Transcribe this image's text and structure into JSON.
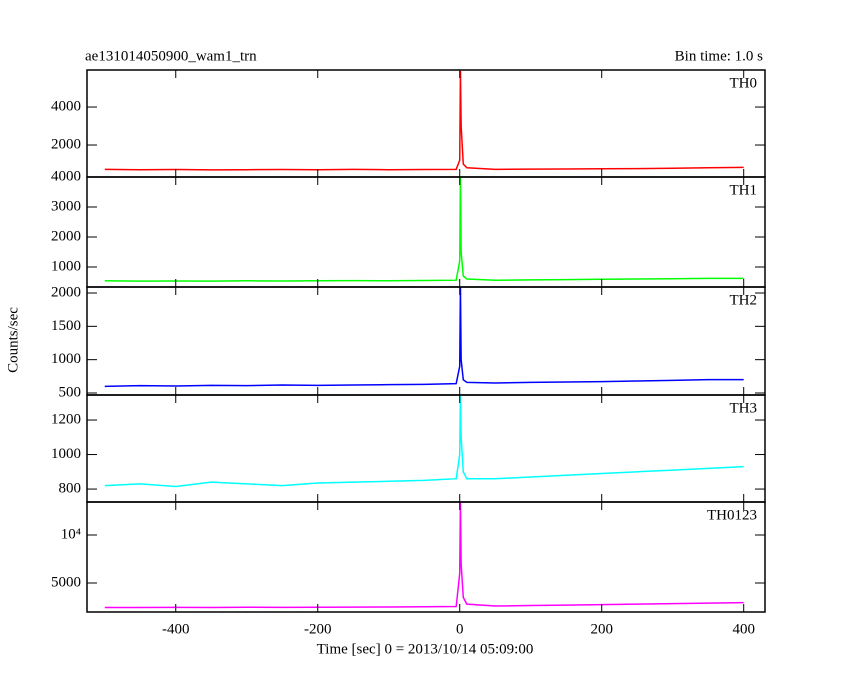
{
  "figure": {
    "title": "ae131014050900_wam1_trn",
    "subtitle": "Bin time: 1.0 s",
    "ylabel": "Counts/sec",
    "xlabel": "Time [sec] 0 = 2013/10/14 05:09:00",
    "xlim": [
      -525,
      430
    ],
    "xticks": [
      -400,
      -200,
      0,
      200,
      400
    ]
  },
  "chart_data": [
    {
      "type": "line",
      "name": "TH0",
      "ylim": [
        316,
        5950
      ],
      "yticks": [
        2000,
        4000
      ],
      "x": [
        -500,
        -450,
        -400,
        -350,
        -300,
        -250,
        -200,
        -150,
        -100,
        -50,
        -5,
        0,
        1,
        2,
        5,
        10,
        50,
        100,
        150,
        200,
        250,
        300,
        350,
        400
      ],
      "series": [
        {
          "name": "TH0",
          "color": "#ff0000",
          "values": [
            720,
            700,
            710,
            690,
            700,
            710,
            700,
            720,
            700,
            710,
            720,
            1200,
            5900,
            3000,
            1000,
            800,
            720,
            730,
            740,
            750,
            760,
            780,
            800,
            820
          ]
        }
      ]
    },
    {
      "type": "line",
      "name": "TH1",
      "ylim": [
        333,
        4000
      ],
      "yticks": [
        1000,
        2000,
        3000,
        4000
      ],
      "x": [
        -500,
        -450,
        -400,
        -350,
        -300,
        -250,
        -200,
        -150,
        -100,
        -50,
        -5,
        0,
        1,
        2,
        5,
        10,
        50,
        100,
        150,
        200,
        250,
        300,
        350,
        400
      ],
      "series": [
        {
          "name": "TH1",
          "color": "#00ff00",
          "values": [
            540,
            530,
            535,
            530,
            540,
            535,
            540,
            545,
            540,
            550,
            560,
            1200,
            4000,
            1500,
            700,
            600,
            560,
            570,
            580,
            590,
            600,
            610,
            620,
            620
          ]
        }
      ]
    },
    {
      "type": "line",
      "name": "TH2",
      "ylim": [
        470,
        2090
      ],
      "yticks": [
        500,
        1000,
        1500,
        2000
      ],
      "x": [
        -500,
        -450,
        -400,
        -350,
        -300,
        -250,
        -200,
        -150,
        -100,
        -50,
        -5,
        0,
        1,
        2,
        5,
        10,
        50,
        100,
        150,
        200,
        250,
        300,
        350,
        400
      ],
      "series": [
        {
          "name": "TH2",
          "color": "#0000ff",
          "values": [
            600,
            610,
            605,
            615,
            610,
            620,
            615,
            620,
            625,
            630,
            640,
            900,
            2090,
            1000,
            700,
            660,
            650,
            660,
            665,
            670,
            680,
            690,
            700,
            700
          ]
        }
      ]
    },
    {
      "type": "line",
      "name": "TH3",
      "ylim": [
        725,
        1345
      ],
      "yticks": [
        800,
        1000,
        1200
      ],
      "x": [
        -500,
        -450,
        -400,
        -350,
        -300,
        -250,
        -200,
        -150,
        -100,
        -50,
        -5,
        0,
        1,
        2,
        5,
        10,
        50,
        100,
        150,
        200,
        250,
        300,
        350,
        400
      ],
      "series": [
        {
          "name": "TH3",
          "color": "#00ffff",
          "values": [
            820,
            830,
            815,
            840,
            830,
            820,
            835,
            840,
            845,
            850,
            860,
            1000,
            1345,
            1100,
            900,
            860,
            860,
            870,
            880,
            890,
            900,
            910,
            920,
            930
          ]
        }
      ]
    },
    {
      "type": "line",
      "name": "TH0123",
      "ylim": [
        1979,
        13437
      ],
      "yticks": [
        5000,
        {
          "value": 10000,
          "label": "10⁴"
        }
      ],
      "x": [
        -500,
        -450,
        -400,
        -350,
        -300,
        -250,
        -200,
        -150,
        -100,
        -50,
        -5,
        0,
        1,
        2,
        5,
        10,
        50,
        100,
        150,
        200,
        250,
        300,
        350,
        400
      ],
      "series": [
        {
          "name": "TH0123",
          "color": "#ff00ff",
          "values": [
            2450,
            2450,
            2460,
            2450,
            2470,
            2460,
            2480,
            2490,
            2500,
            2520,
            2550,
            6000,
            13400,
            7000,
            3500,
            2800,
            2600,
            2650,
            2700,
            2750,
            2800,
            2850,
            2900,
            2950
          ]
        }
      ]
    }
  ]
}
